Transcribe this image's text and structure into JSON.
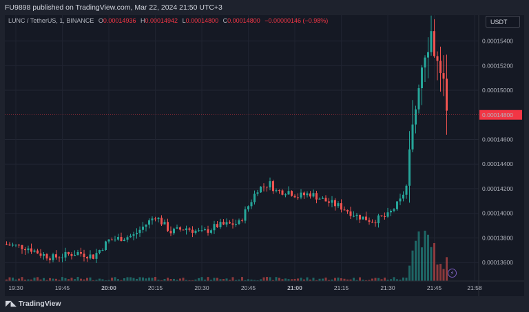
{
  "header": {
    "title": "FU9898 published on TradingView.com, Mar 22, 2024 21:50 UTC+3"
  },
  "legend": {
    "symbol": "LUNC / TetherUS, 1, BINANCE",
    "o_label": "O",
    "o_value": "0.00014936",
    "h_label": "H",
    "h_value": "0.00014942",
    "l_label": "L",
    "l_value": "0.00014800",
    "c_label": "C",
    "c_value": "0.00014800",
    "change": "−0.00000146 (−0.98%)"
  },
  "currency": "USDT",
  "footer": {
    "brand": "TradingView"
  },
  "colors": {
    "up": "#26a69a",
    "down": "#ef5350",
    "price_tag": "#f23645",
    "background": "#151924"
  },
  "icons": {
    "bolt": "lightning-icon",
    "logo": "tradingview-logo-icon"
  },
  "chart_data": {
    "type": "candlestick",
    "symbol": "LUNC / TetherUS",
    "interval": "1",
    "exchange": "BINANCE",
    "y_ticks": [
      "0.00015400",
      "0.00015200",
      "0.00015000",
      "0.00014600",
      "0.00014400",
      "0.00014200",
      "0.00014000",
      "0.00013800",
      "0.00013600"
    ],
    "y_tick_values": [
      0.000154,
      0.000152,
      0.00015,
      0.000146,
      0.000144,
      0.000142,
      0.00014,
      0.000138,
      0.000136
    ],
    "ylim": [
      0.0001345,
      0.0001561
    ],
    "current_price": "0.00014800",
    "current_price_value": 0.000148,
    "x_ticks": [
      "19:30",
      "19:45",
      "20:00",
      "20:15",
      "20:30",
      "20:45",
      "21:00",
      "21:15",
      "21:30",
      "21:45",
      "21:58"
    ],
    "x_tick_minutes": [
      0,
      15,
      30,
      45,
      60,
      75,
      90,
      105,
      120,
      135,
      148
    ],
    "x_bold_ticks": [
      "20:00",
      "21:00"
    ],
    "close_anchors": [
      [
        -4,
        0.0001375
      ],
      [
        4,
        0.0001372
      ],
      [
        8,
        0.0001367
      ],
      [
        12,
        0.0001364
      ],
      [
        20,
        0.0001368
      ],
      [
        25,
        0.0001365
      ],
      [
        30,
        0.0001378
      ],
      [
        38,
        0.0001382
      ],
      [
        45,
        0.0001398
      ],
      [
        50,
        0.0001385
      ],
      [
        55,
        0.0001388
      ],
      [
        60,
        0.0001384
      ],
      [
        65,
        0.000139
      ],
      [
        72,
        0.0001392
      ],
      [
        78,
        0.000142
      ],
      [
        82,
        0.0001424
      ],
      [
        84,
        0.0001418
      ],
      [
        88,
        0.0001418
      ],
      [
        91,
        0.0001414
      ],
      [
        95,
        0.0001416
      ],
      [
        100,
        0.000141
      ],
      [
        105,
        0.0001405
      ],
      [
        110,
        0.0001398
      ],
      [
        115,
        0.0001394
      ],
      [
        120,
        0.0001398
      ],
      [
        124,
        0.000141
      ],
      [
        126,
        0.0001422
      ],
      [
        128,
        0.0001465
      ],
      [
        130,
        0.000151
      ],
      [
        132,
        0.0001535
      ],
      [
        134,
        0.0001548
      ],
      [
        136,
        0.000152
      ],
      [
        138,
        0.00015
      ],
      [
        139,
        0.000148
      ]
    ]
  }
}
